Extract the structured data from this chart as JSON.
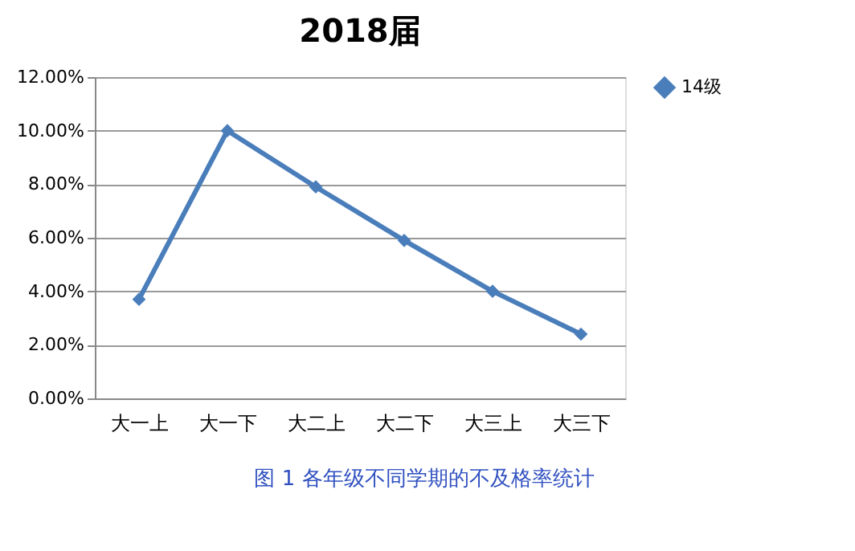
{
  "chart_data": {
    "type": "line",
    "title": "2018届",
    "categories": [
      "大一上",
      "大一下",
      "大二上",
      "大二下",
      "大三上",
      "大三下"
    ],
    "series": [
      {
        "name": "14级",
        "color": "#4a7ebb",
        "values": [
          3.7,
          10.0,
          7.9,
          5.9,
          4.0,
          2.4
        ]
      }
    ],
    "ylim": [
      0,
      12
    ],
    "yticks": [
      {
        "value": 0,
        "label": "0.00%"
      },
      {
        "value": 2,
        "label": "2.00%"
      },
      {
        "value": 4,
        "label": "4.00%"
      },
      {
        "value": 6,
        "label": "6.00%"
      },
      {
        "value": 8,
        "label": "8.00%"
      },
      {
        "value": 10,
        "label": "10.00%"
      },
      {
        "value": 12,
        "label": "12.00%"
      }
    ],
    "grid": "y",
    "legend": "right",
    "marker": "diamond",
    "line_style": "solid",
    "annotations": [
      "图 1 各年级不同学期的不及格率统计"
    ]
  }
}
